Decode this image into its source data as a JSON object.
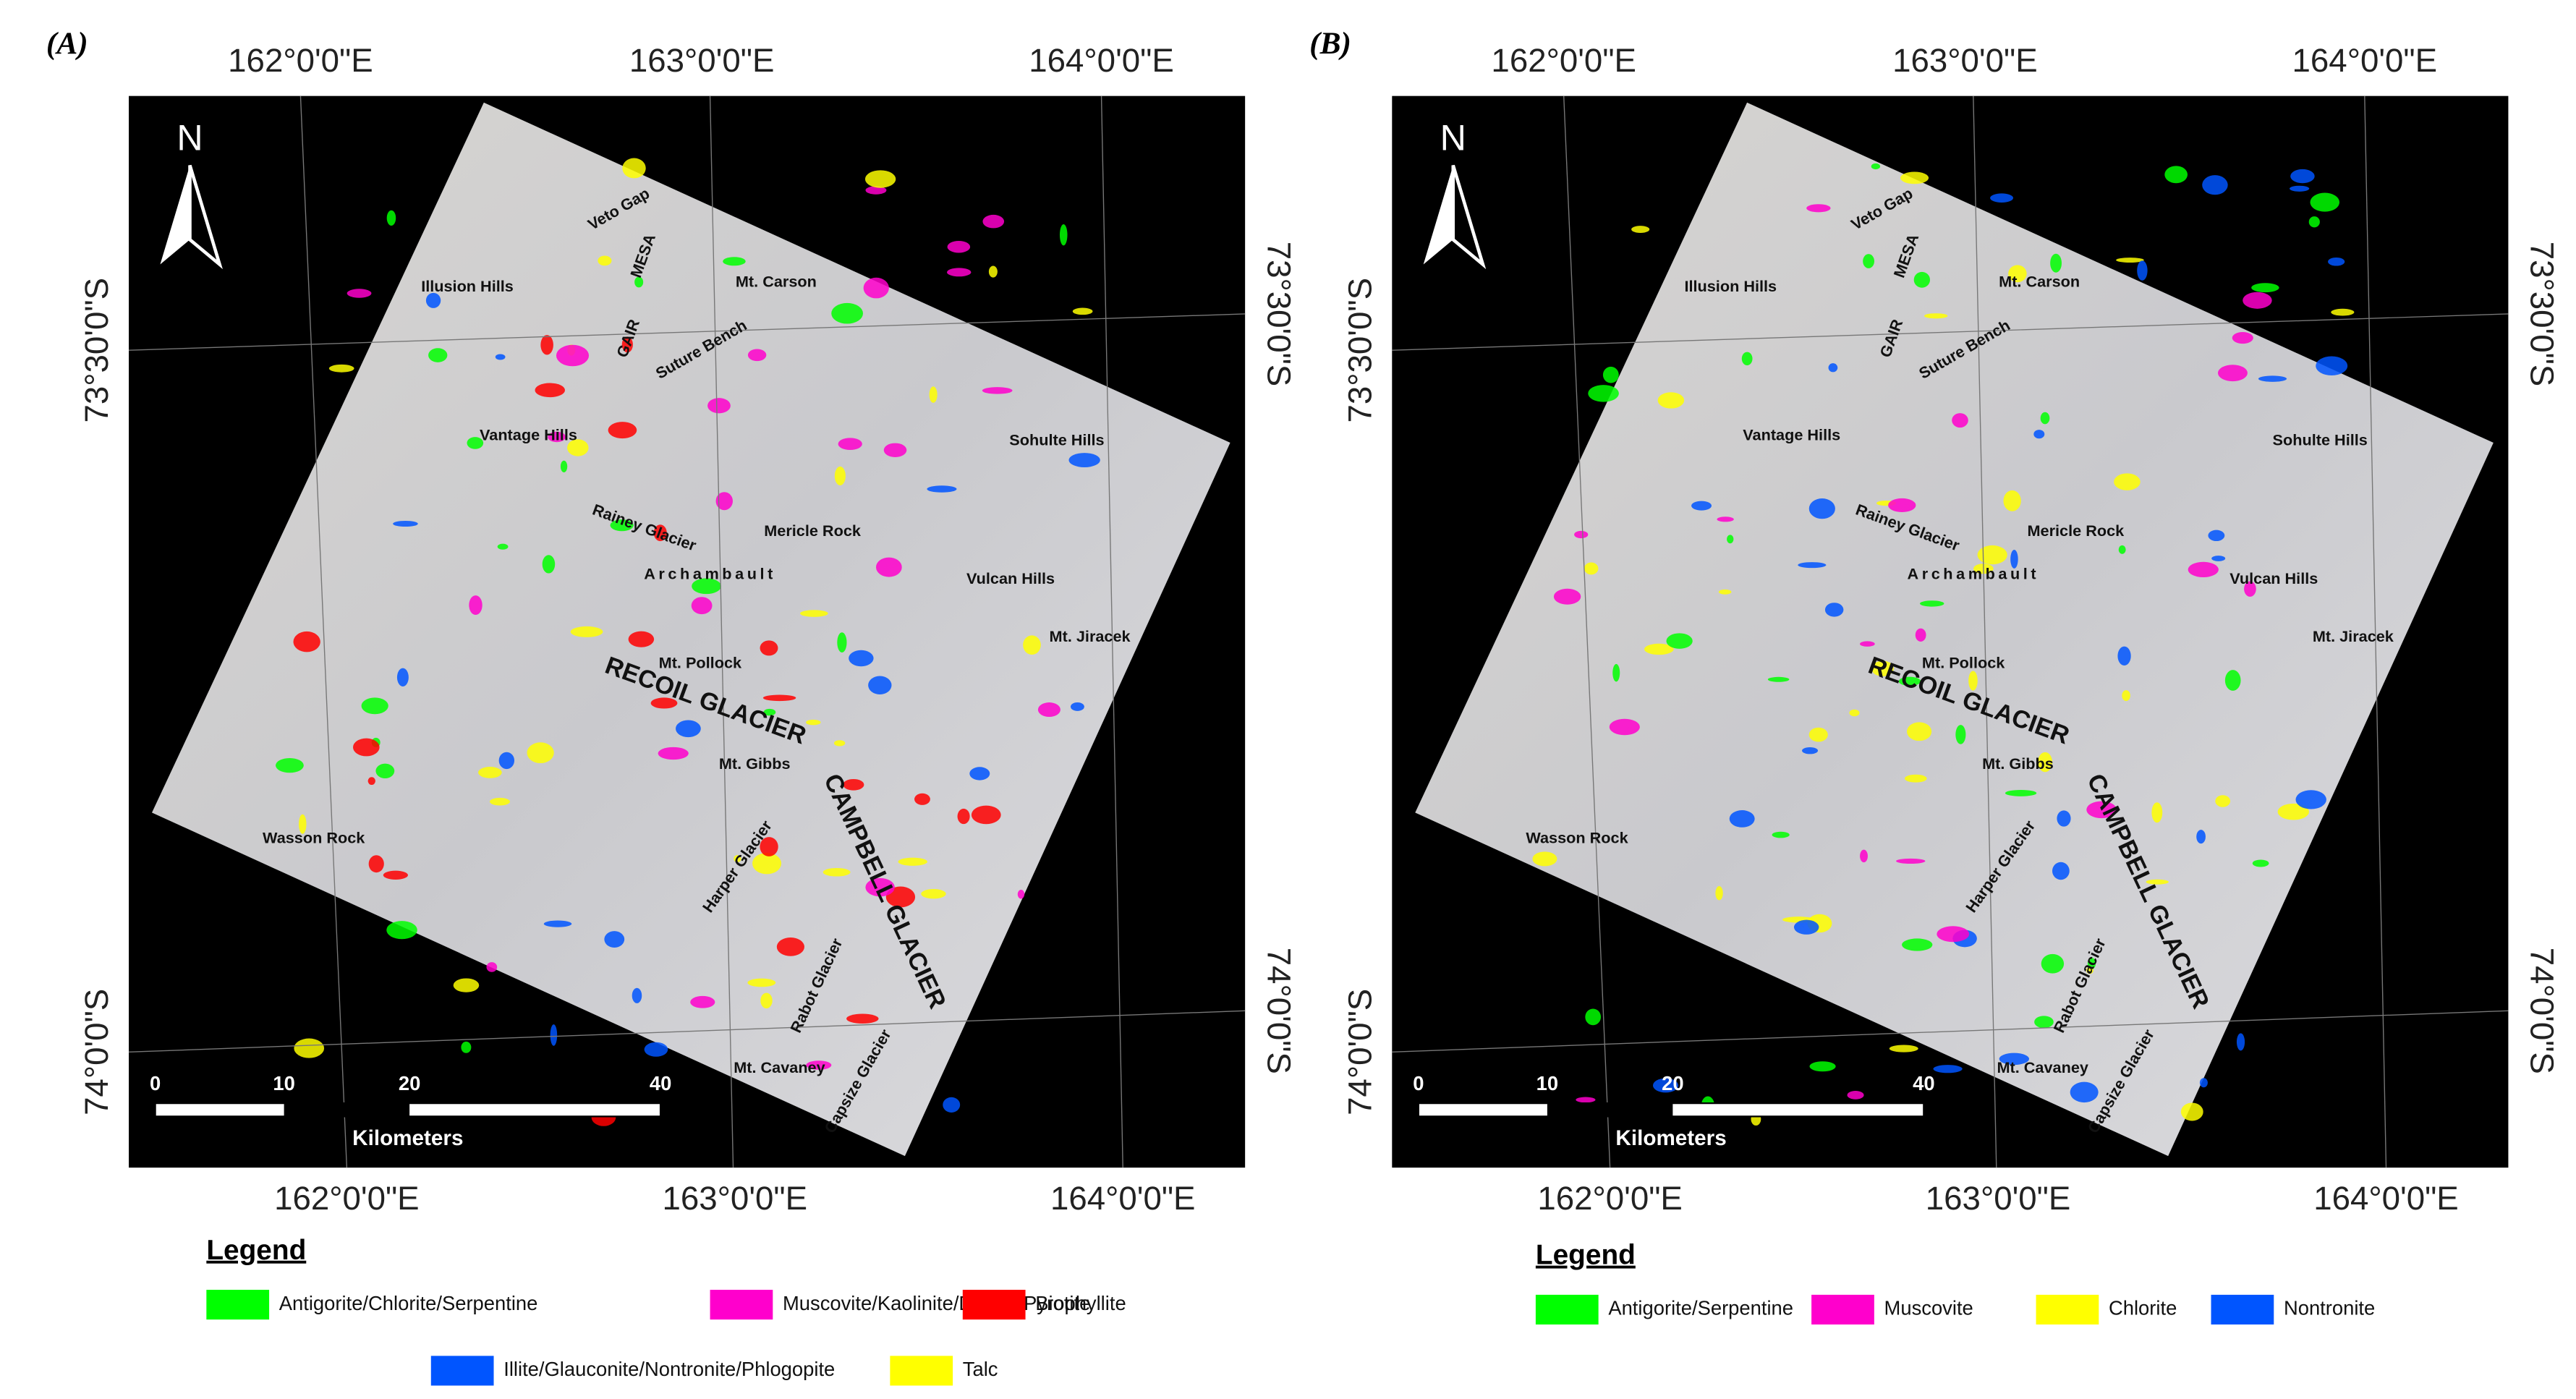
{
  "panels": [
    {
      "label": "(A)",
      "north": "N",
      "top_labels": [
        "162°0'0\"E",
        "163°0'0\"E",
        "164°0'0\"E"
      ],
      "bottom_labels": [
        "162°0'0\"E",
        "163°0'0\"E",
        "164°0'0\"E"
      ],
      "left_labels": [
        "73°30'0\"S",
        "74°0'0\"S"
      ],
      "right_labels": [
        "73°30'0\"S",
        "74°0'0\"S"
      ],
      "places": [
        "Veto Gap",
        "MESA",
        "GAIR",
        "Illusion Hills",
        "Mt. Carson",
        "Suture Bench",
        "Vantage Hills",
        "Sohulte Hills",
        "Rainey Glacier",
        "Mericle Rock",
        "Archambault",
        "Vulcan Hills",
        "Mt. Jiracek",
        "Mt. Pollock",
        "RECOIL GLACIER",
        "Mt. Gibbs",
        "CAMPBELL GLACIER",
        "Wasson Rock",
        "Harper Glacier",
        "Rabot Glacier",
        "Mt. Cavaney",
        "Capsize Glacier"
      ],
      "scale": {
        "ticks": [
          "0",
          "10",
          "20",
          "40"
        ],
        "unit": "Kilometers"
      },
      "legend": {
        "title": "Legend",
        "items": [
          {
            "name": "Antigorite/Chlorite/Serpentine",
            "color": "#00ff00"
          },
          {
            "name": "Muscovite/Kaolinite/Dickite/Pyrophyllite",
            "color": "#ff00cc"
          },
          {
            "name": "Biotite",
            "color": "#ff0000"
          },
          {
            "name": "Illite/Glauconite/Nontronite/Phlogopite",
            "color": "#0055ff"
          },
          {
            "name": "Talc",
            "color": "#ffff00"
          }
        ]
      }
    },
    {
      "label": "(B)",
      "north": "N",
      "top_labels": [
        "162°0'0\"E",
        "163°0'0\"E",
        "164°0'0\"E"
      ],
      "bottom_labels": [
        "162°0'0\"E",
        "163°0'0\"E",
        "164°0'0\"E"
      ],
      "left_labels": [
        "73°30'0\"S",
        "74°0'0\"S"
      ],
      "right_labels": [
        "73°30'0\"S",
        "74°0'0\"S"
      ],
      "places": [
        "Veto Gap",
        "MESA",
        "GAIR",
        "Illusion Hills",
        "Mt. Carson",
        "Suture Bench",
        "Vantage Hills",
        "Sohulte Hills",
        "Rainey Glacier",
        "Mericle Rock",
        "Archambault",
        "Vulcan Hills",
        "Mt. Jiracek",
        "Mt. Pollock",
        "RECOIL GLACIER",
        "Mt. Gibbs",
        "CAMPBELL GLACIER",
        "Wasson Rock",
        "Harper Glacier",
        "Rabot Glacier",
        "Mt. Cavaney",
        "Capsize Glacier"
      ],
      "scale": {
        "ticks": [
          "0",
          "10",
          "20",
          "40"
        ],
        "unit": "Kilometers"
      },
      "legend": {
        "title": "Legend",
        "items": [
          {
            "name": "Antigorite/Serpentine",
            "color": "#00ff00"
          },
          {
            "name": "Muscovite",
            "color": "#ff00cc"
          },
          {
            "name": "Chlorite",
            "color": "#ffff00"
          },
          {
            "name": "Nontronite",
            "color": "#0055ff"
          }
        ]
      }
    }
  ]
}
